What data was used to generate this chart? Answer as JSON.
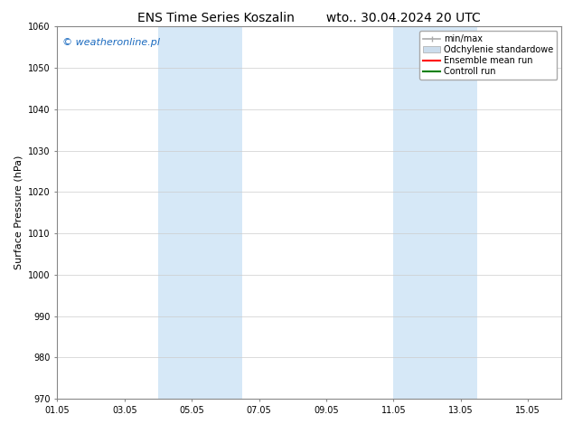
{
  "title_left": "ENS Time Series Koszalin",
  "title_right": "wto.. 30.04.2024 20 UTC",
  "ylabel": "Surface Pressure (hPa)",
  "ylim": [
    970,
    1060
  ],
  "yticks": [
    970,
    980,
    990,
    1000,
    1010,
    1020,
    1030,
    1040,
    1050,
    1060
  ],
  "xlim_start": 0,
  "xlim_end": 15,
  "xtick_labels": [
    "01.05",
    "03.05",
    "05.05",
    "07.05",
    "09.05",
    "11.05",
    "13.05",
    "15.05"
  ],
  "xtick_positions": [
    0,
    2,
    4,
    6,
    8,
    10,
    12,
    14
  ],
  "shaded_bands": [
    {
      "x_start": 3.0,
      "x_end": 5.5
    },
    {
      "x_start": 10.0,
      "x_end": 12.5
    }
  ],
  "shade_color": "#d6e8f7",
  "watermark_text": "© weatheronline.pl",
  "watermark_color": "#1a6abf",
  "legend_items": [
    {
      "label": "min/max",
      "color": "#aaaaaa",
      "lw": 1.2,
      "ls": "-"
    },
    {
      "label": "Odchylenie standardowe",
      "color": "#ccdded",
      "lw": 8,
      "ls": "-"
    },
    {
      "label": "Ensemble mean run",
      "color": "#ff0000",
      "lw": 1.5,
      "ls": "-"
    },
    {
      "label": "Controll run",
      "color": "#008000",
      "lw": 1.5,
      "ls": "-"
    }
  ],
  "bg_color": "#ffffff",
  "grid_color": "#cccccc",
  "title_fontsize": 10,
  "tick_fontsize": 7,
  "ylabel_fontsize": 8,
  "legend_fontsize": 7,
  "watermark_fontsize": 8
}
